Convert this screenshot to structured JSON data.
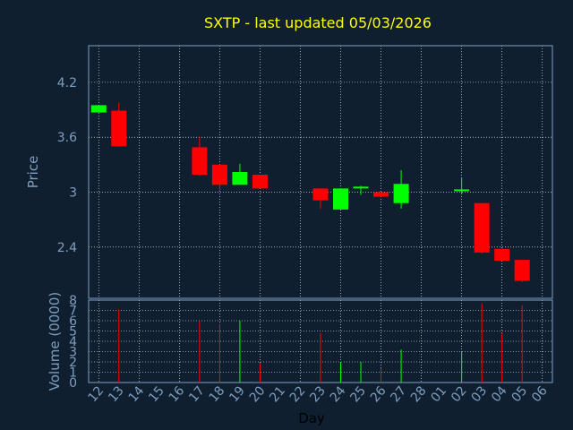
{
  "chart_data": {
    "type": "candlestick",
    "title": "SXTP - last updated 05/03/2026",
    "ylabel": "Price",
    "volume_label": "Volume (0000)",
    "xlabel": "Day",
    "x_ticks": [
      "12",
      "13",
      "14",
      "15",
      "16",
      "17",
      "18",
      "19",
      "20",
      "21",
      "22",
      "23",
      "24",
      "25",
      "26",
      "27",
      "28",
      "01",
      "02",
      "03",
      "04",
      "05",
      "06"
    ],
    "price_ylim": [
      1.84,
      4.6
    ],
    "price_ticks": [
      "2.4",
      "3",
      "3.6",
      "4.2"
    ],
    "volume_ylim": [
      0,
      8
    ],
    "volume_ticks": [
      "0",
      "1",
      "2",
      "3",
      "4",
      "5",
      "6",
      "7",
      "8"
    ],
    "grid": true,
    "colors": {
      "background": "#0f1f30",
      "up": "#00ff00",
      "down": "#ff0000",
      "grid": "#ffffff",
      "axis": "#7f9fbf",
      "title": "#ffff00"
    },
    "candles": [
      {
        "day": "12",
        "open": 3.87,
        "high": 3.95,
        "low": 3.87,
        "close": 3.95
      },
      {
        "day": "13",
        "open": 3.89,
        "high": 3.98,
        "low": 3.5,
        "close": 3.5
      },
      {
        "day": "17",
        "open": 3.49,
        "high": 3.6,
        "low": 3.18,
        "close": 3.19
      },
      {
        "day": "18",
        "open": 3.3,
        "high": 3.3,
        "low": 3.02,
        "close": 3.08
      },
      {
        "day": "19",
        "open": 3.08,
        "high": 3.31,
        "low": 3.08,
        "close": 3.22
      },
      {
        "day": "20",
        "open": 3.19,
        "high": 3.19,
        "low": 3.04,
        "close": 3.04
      },
      {
        "day": "23",
        "open": 3.04,
        "high": 3.04,
        "low": 2.82,
        "close": 2.91
      },
      {
        "day": "24",
        "open": 2.81,
        "high": 3.04,
        "low": 2.81,
        "close": 3.04
      },
      {
        "day": "25",
        "open": 3.04,
        "high": 3.07,
        "low": 2.97,
        "close": 3.06
      },
      {
        "day": "26",
        "open": 3.0,
        "high": 3.0,
        "low": 2.94,
        "close": 2.95
      },
      {
        "day": "27",
        "open": 2.88,
        "high": 3.24,
        "low": 2.82,
        "close": 3.09
      },
      {
        "day": "02",
        "open": 3.02,
        "high": 3.16,
        "low": 2.98,
        "close": 3.03
      },
      {
        "day": "03",
        "open": 2.88,
        "high": 2.88,
        "low": 2.33,
        "close": 2.34
      },
      {
        "day": "04",
        "open": 2.38,
        "high": 2.38,
        "low": 2.25,
        "close": 2.25
      },
      {
        "day": "05",
        "open": 2.26,
        "high": 2.26,
        "low": 2.02,
        "close": 2.03
      }
    ],
    "volume": [
      {
        "day": "13",
        "value": 7.1
      },
      {
        "day": "17",
        "value": 6.0
      },
      {
        "day": "18",
        "value": 5.7
      },
      {
        "day": "19",
        "value": 6.0
      },
      {
        "day": "20",
        "value": 1.9
      },
      {
        "day": "23",
        "value": 4.8
      },
      {
        "day": "24",
        "value": 2.0
      },
      {
        "day": "25",
        "value": 2.0
      },
      {
        "day": "26",
        "value": 1.4
      },
      {
        "day": "27",
        "value": 3.2
      },
      {
        "day": "02",
        "value": 3.0
      },
      {
        "day": "03",
        "value": 7.7
      },
      {
        "day": "04",
        "value": 4.8
      },
      {
        "day": "05",
        "value": 7.5
      }
    ]
  }
}
